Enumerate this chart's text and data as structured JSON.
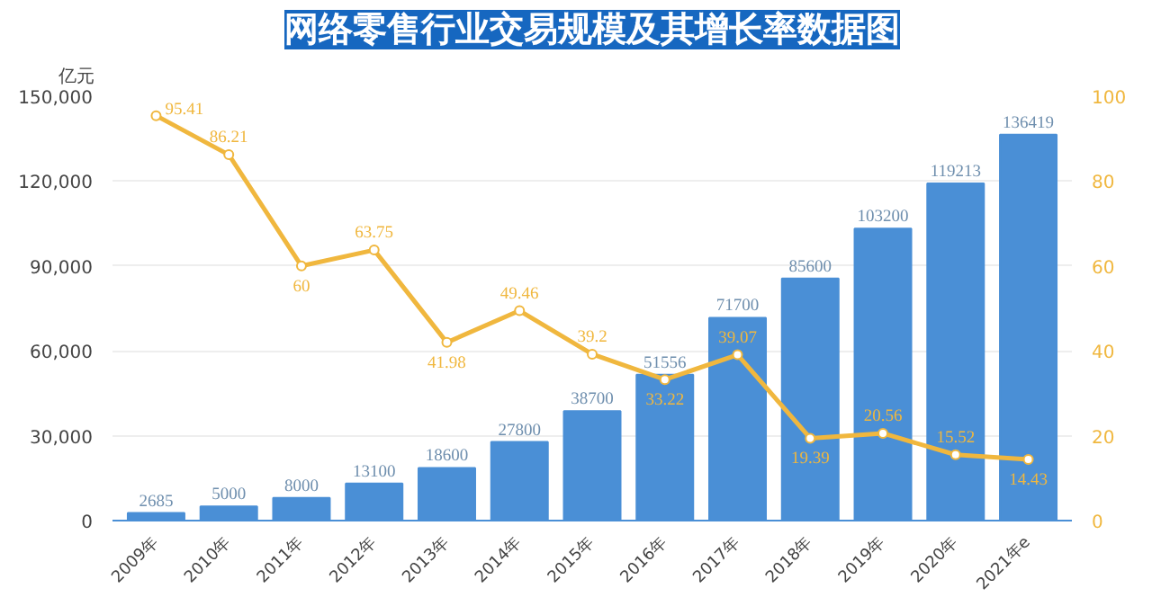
{
  "chart_data": {
    "type": "bar",
    "title": "网络零售行业交易规模及其增长率数据图",
    "ylabel": "亿元",
    "categories": [
      "2009年",
      "2010年",
      "2011年",
      "2012年",
      "2013年",
      "2014年",
      "2015年",
      "2016年",
      "2017年",
      "2018年",
      "2019年",
      "2020年",
      "2021年e"
    ],
    "series": [
      {
        "color": "#4a8fd6",
        "values": [
          2685,
          5000,
          8000,
          13100,
          18600,
          27800,
          38700,
          51556,
          71700,
          85600,
          103200,
          119213,
          136419
        ]
      },
      {
        "type": "line",
        "axis": "y2",
        "color": "#f0b73e",
        "marker": "circle",
        "values": [
          95.41,
          86.21,
          60,
          63.75,
          41.98,
          49.46,
          39.2,
          33.22,
          39.07,
          19.39,
          20.56,
          15.52,
          14.43
        ]
      }
    ],
    "ylim": [
      0,
      150000
    ],
    "yticks": [
      {
        "value": 0,
        "label": "0"
      },
      {
        "value": 30000,
        "label": "30,000"
      },
      {
        "value": 60000,
        "label": "60,000"
      },
      {
        "value": 90000,
        "label": "90,000"
      },
      {
        "value": 120000,
        "label": "120,000"
      },
      {
        "value": 150000,
        "label": "150,000"
      }
    ],
    "y2lim": [
      0,
      100
    ],
    "y2ticks": [
      0,
      20,
      40,
      60,
      80,
      100
    ],
    "grid": "y",
    "data_labels": true
  }
}
